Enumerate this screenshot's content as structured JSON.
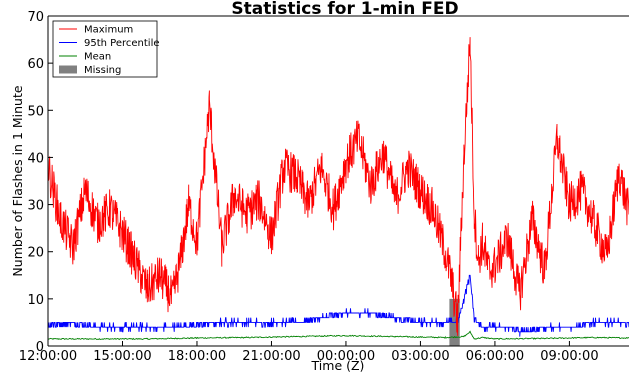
{
  "chart_data": {
    "type": "line",
    "title": "Statistics for 1-min FED",
    "xlabel": "Time (Z)",
    "ylabel": "Number of Flashes in 1 Minute",
    "ylim": [
      0,
      70
    ],
    "xlim_hours": [
      0,
      23.4
    ],
    "x_ticks": [
      "12:00:00",
      "15:00:00",
      "18:00:00",
      "21:00:00",
      "00:00:00",
      "03:00:00",
      "06:00:00",
      "09:00:00"
    ],
    "y_ticks": [
      0,
      10,
      20,
      30,
      40,
      50,
      60,
      70
    ],
    "legend_position": "upper-left",
    "series": [
      {
        "name": "Maximum",
        "color": "#ff0000",
        "x": [
          "12:00",
          "12:30",
          "13:00",
          "13:30",
          "14:00",
          "14:30",
          "15:00",
          "15:30",
          "16:00",
          "16:30",
          "17:00",
          "17:20",
          "17:40",
          "18:00",
          "18:30",
          "19:00",
          "19:30",
          "20:00",
          "20:30",
          "21:00",
          "21:30",
          "22:00",
          "22:30",
          "23:00",
          "23:30",
          "00:00",
          "00:30",
          "01:00",
          "01:30",
          "02:00",
          "02:30",
          "03:00",
          "03:30",
          "04:00",
          "04:15",
          "04:30",
          "04:45",
          "05:00",
          "05:10",
          "05:20",
          "05:30",
          "05:45",
          "06:00",
          "06:30",
          "07:00",
          "07:30",
          "08:00",
          "08:30",
          "09:00",
          "09:30",
          "10:00",
          "10:30",
          "11:00",
          "11:24"
        ],
        "values": [
          38,
          27,
          21,
          33,
          26,
          29,
          24,
          18,
          12,
          15,
          10,
          18,
          30,
          22,
          51,
          21,
          32,
          28,
          31,
          23,
          38,
          36,
          30,
          38,
          29,
          39,
          44,
          34,
          41,
          31,
          38,
          33,
          29,
          20,
          14,
          5,
          40,
          65,
          28,
          18,
          22,
          16,
          17,
          23,
          11,
          27,
          16,
          44,
          30,
          33,
          26,
          19,
          37,
          28
        ]
      },
      {
        "name": "95th Percentile",
        "color": "#0000ff",
        "x": [
          "12:00",
          "13:00",
          "14:00",
          "15:00",
          "16:00",
          "17:00",
          "18:00",
          "19:00",
          "20:00",
          "21:00",
          "22:00",
          "23:00",
          "00:00",
          "01:00",
          "02:00",
          "03:00",
          "04:00",
          "04:30",
          "05:00",
          "05:10",
          "05:30",
          "06:00",
          "06:30",
          "07:00",
          "08:00",
          "09:00",
          "10:00",
          "11:00",
          "11:24"
        ],
        "values": [
          4.5,
          5,
          4,
          4,
          4,
          4,
          4.5,
          5,
          5,
          5,
          5,
          6,
          7,
          7,
          6,
          5,
          5,
          5,
          15,
          6,
          4,
          4,
          4,
          3,
          4,
          4,
          5,
          5,
          4.5
        ]
      },
      {
        "name": "Mean",
        "color": "#008000",
        "x": [
          "12:00",
          "14:00",
          "16:00",
          "18:00",
          "20:00",
          "22:00",
          "00:00",
          "02:00",
          "04:00",
          "04:45",
          "05:00",
          "05:10",
          "05:30",
          "06:00",
          "08:00",
          "10:00",
          "11:24"
        ],
        "values": [
          1.5,
          1.5,
          1.5,
          1.7,
          1.8,
          2,
          2.2,
          2,
          1.8,
          2,
          3,
          1.5,
          1.8,
          1.5,
          1.6,
          1.8,
          1.7
        ]
      }
    ],
    "missing": {
      "name": "Missing",
      "color": "#808080",
      "value": 10,
      "intervals": [
        [
          "04:10",
          "04:35"
        ]
      ]
    }
  }
}
